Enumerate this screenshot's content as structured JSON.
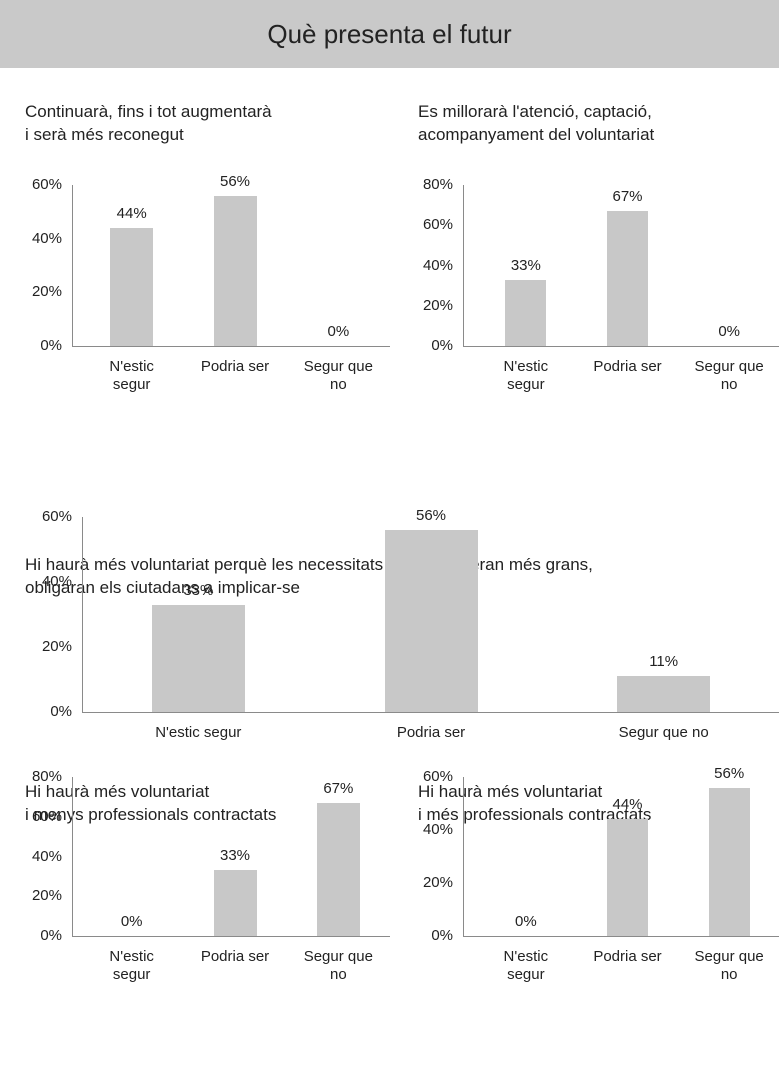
{
  "header": {
    "title": "Què presenta el futur"
  },
  "chart_data": [
    {
      "type": "bar",
      "title": "Continuarà, fins i tot augmentarà\ni serà més reconegut",
      "categories": [
        "N'estic segur",
        "Podria ser",
        "Segur que no"
      ],
      "values": [
        44,
        56,
        0
      ],
      "value_labels": [
        "44%",
        "56%",
        "0%"
      ],
      "color": "#c8c8c8",
      "ylim": [
        0,
        60
      ],
      "yticks": [
        {
          "value": 0,
          "label": "0%"
        },
        {
          "value": 20,
          "label": "20%"
        },
        {
          "value": 40,
          "label": "40%"
        },
        {
          "value": 60,
          "label": "60%"
        }
      ]
    },
    {
      "type": "bar",
      "title": "Es millorarà l'atenció, captació,\nacompanyament del voluntariat",
      "categories": [
        "N'estic segur",
        "Podria ser",
        "Segur que no"
      ],
      "values": [
        33,
        67,
        0
      ],
      "value_labels": [
        "33%",
        "67%",
        "0%"
      ],
      "color": "#c8c8c8",
      "ylim": [
        0,
        80
      ],
      "yticks": [
        {
          "value": 0,
          "label": "0%"
        },
        {
          "value": 20,
          "label": "20%"
        },
        {
          "value": 40,
          "label": "40%"
        },
        {
          "value": 60,
          "label": "60%"
        },
        {
          "value": 80,
          "label": "80%"
        }
      ]
    },
    {
      "type": "bar",
      "title": "Hi haurà més voluntariat perquè les necessitats cada cop seran més grans,\nobligaran els ciutadans a implicar-se",
      "categories": [
        "N'estic segur",
        "Podria ser",
        "Segur que no"
      ],
      "values": [
        33,
        56,
        11
      ],
      "value_labels": [
        "33%",
        "56%",
        "11%"
      ],
      "color": "#c8c8c8",
      "ylim": [
        0,
        60
      ],
      "yticks": [
        {
          "value": 0,
          "label": "0%"
        },
        {
          "value": 20,
          "label": "20%"
        },
        {
          "value": 40,
          "label": "40%"
        },
        {
          "value": 60,
          "label": "60%"
        }
      ]
    },
    {
      "type": "bar",
      "title": "Hi haurà més voluntariat\ni menys professionals contractats",
      "categories": [
        "N'estic segur",
        "Podria ser",
        "Segur que no"
      ],
      "values": [
        0,
        33,
        67
      ],
      "value_labels": [
        "0%",
        "33%",
        "67%"
      ],
      "color": "#c8c8c8",
      "ylim": [
        0,
        80
      ],
      "yticks": [
        {
          "value": 0,
          "label": "0%"
        },
        {
          "value": 20,
          "label": "20%"
        },
        {
          "value": 40,
          "label": "40%"
        },
        {
          "value": 60,
          "label": "60%"
        },
        {
          "value": 80,
          "label": "80%"
        }
      ]
    },
    {
      "type": "bar",
      "title": "Hi haurà més voluntariat\ni més professionals contractats",
      "categories": [
        "N'estic segur",
        "Podria ser",
        "Segur que no"
      ],
      "values": [
        0,
        44,
        56
      ],
      "value_labels": [
        "0%",
        "44%",
        "56%"
      ],
      "color": "#c8c8c8",
      "ylim": [
        0,
        60
      ],
      "yticks": [
        {
          "value": 0,
          "label": "0%"
        },
        {
          "value": 20,
          "label": "20%"
        },
        {
          "value": 40,
          "label": "40%"
        },
        {
          "value": 60,
          "label": "60%"
        }
      ]
    }
  ]
}
